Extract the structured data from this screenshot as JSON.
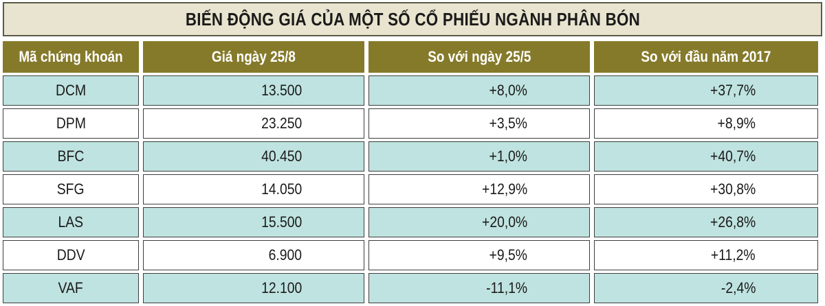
{
  "title": "BIẾN ĐỘNG GIÁ CỦA MỘT SỐ CỔ PHIẾU NGÀNH PHÂN BÓN",
  "columns": [
    "Mã chứng khoán",
    "Giá ngày 25/8",
    "So với ngày 25/5",
    "So với đầu năm 2017"
  ],
  "rows": [
    {
      "code": "DCM",
      "price": "13.500",
      "vs_may": "+8,0%",
      "vs_ytd": "+37,7%"
    },
    {
      "code": "DPM",
      "price": "23.250",
      "vs_may": "+3,5%",
      "vs_ytd": "+8,9%"
    },
    {
      "code": "BFC",
      "price": "40.450",
      "vs_may": "+1,0%",
      "vs_ytd": "+40,7%"
    },
    {
      "code": "SFG",
      "price": "14.050",
      "vs_may": "+12,9%",
      "vs_ytd": "+30,8%"
    },
    {
      "code": "LAS",
      "price": "15.500",
      "vs_may": "+20,0%",
      "vs_ytd": "+26,8%"
    },
    {
      "code": "DDV",
      "price": "6.900",
      "vs_may": "+9,5%",
      "vs_ytd": "+11,2%"
    },
    {
      "code": "VAF",
      "price": "12.100",
      "vs_may": "-11,1%",
      "vs_ytd": "-2,4%"
    }
  ],
  "colors": {
    "header_bg": "#857a2a",
    "title_bg": "#e8e4cf",
    "row_teal": "#bfe3e0",
    "row_white": "#ffffff"
  }
}
